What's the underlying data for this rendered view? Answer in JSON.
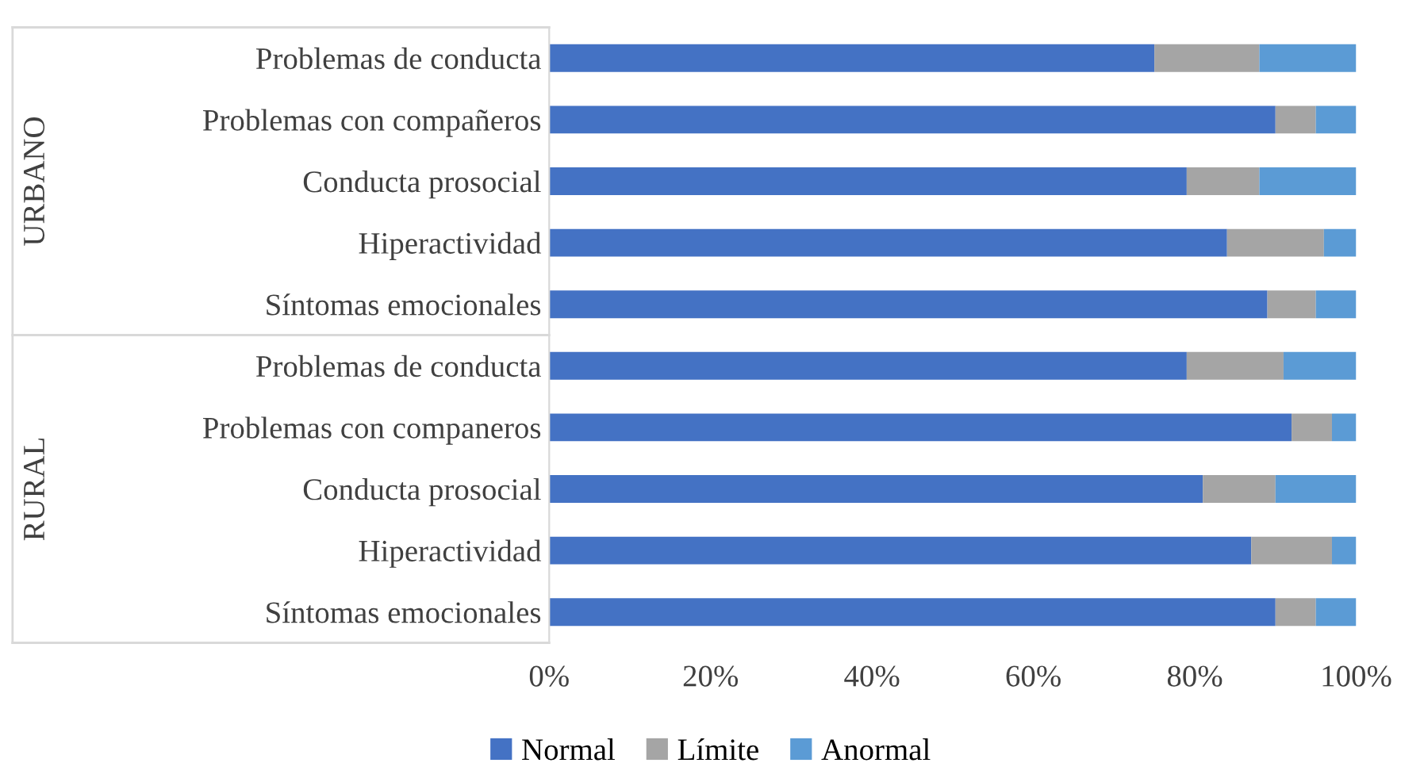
{
  "chart_data": {
    "type": "bar",
    "orientation": "horizontal",
    "stacked": true,
    "categories": [
      "Problemas de conducta",
      "Problemas con compañeros",
      "Conducta prosocial",
      "Hiperactividad",
      "Síntomas emocionales",
      "Problemas de conducta",
      "Problemas con companeros",
      "Conducta prosocial",
      "Hiperactividad",
      "Síntomas emocionales"
    ],
    "series": [
      {
        "name": "Normal",
        "color": "#4472c4",
        "values": [
          75,
          90,
          79,
          84,
          89,
          79,
          92,
          81,
          87,
          90
        ]
      },
      {
        "name": "Límite",
        "color": "#a5a5a5",
        "values": [
          13,
          5,
          9,
          12,
          6,
          12,
          5,
          9,
          10,
          5
        ]
      },
      {
        "name": "Anormal",
        "color": "#5b9bd5",
        "values": [
          12,
          5,
          12,
          4,
          5,
          9,
          3,
          10,
          3,
          5
        ]
      }
    ],
    "annotations": [
      "URBANO",
      "RURAL"
    ],
    "xlim": [
      0,
      100
    ],
    "xticks": [
      {
        "value": 0,
        "label": "0%"
      },
      {
        "value": 20,
        "label": "20%"
      },
      {
        "value": 40,
        "label": "40%"
      },
      {
        "value": 60,
        "label": "60%"
      },
      {
        "value": 80,
        "label": "80%"
      },
      {
        "value": 100,
        "label": "100%"
      }
    ],
    "legend": "bottom",
    "grid": false
  }
}
